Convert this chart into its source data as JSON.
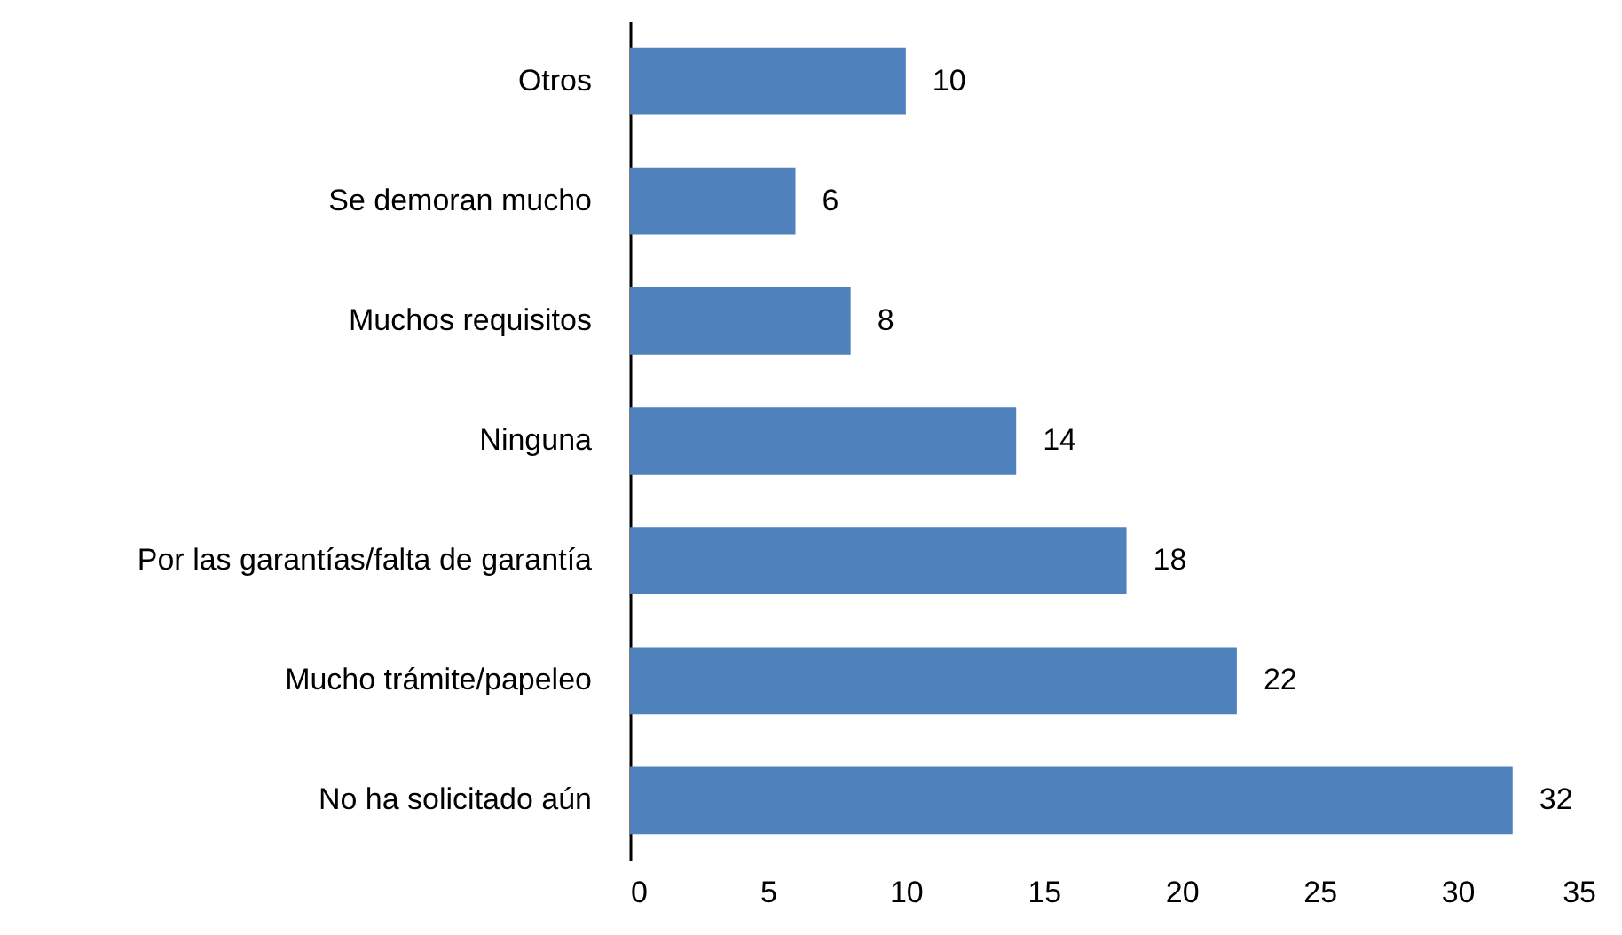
{
  "chart_data": {
    "type": "bar",
    "orientation": "horizontal",
    "categories": [
      "Otros",
      "Se demoran mucho",
      "Muchos requisitos",
      "Ninguna",
      "Por las garantías/falta de garantía",
      "Mucho trámite/papeleo",
      "No ha solicitado aún"
    ],
    "values": [
      10,
      6,
      8,
      14,
      18,
      22,
      32
    ],
    "color": "#4f81bd",
    "xlim": [
      0,
      35
    ],
    "xticks": [
      0,
      5,
      10,
      15,
      20,
      25,
      30,
      35
    ],
    "data_labels": true
  }
}
